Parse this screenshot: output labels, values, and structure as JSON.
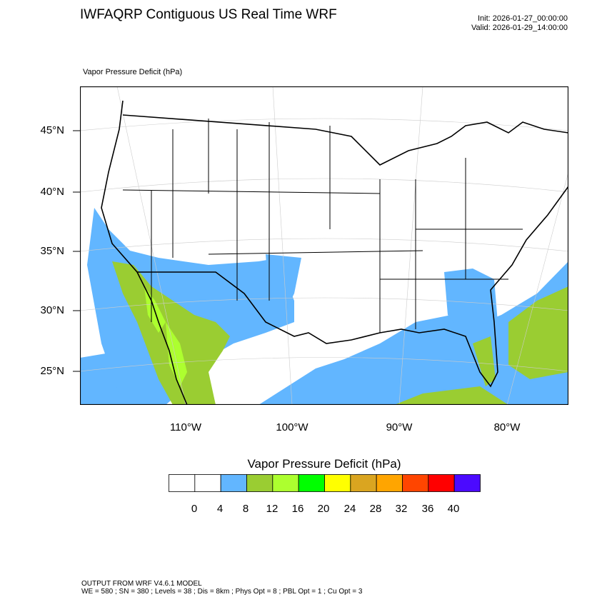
{
  "title": "IWFAQRP Contiguous US Real Time WRF",
  "init": "Init: 2026-01-27_00:00:00",
  "valid": "Valid: 2026-01-29_14:00:00",
  "subtitle": "Vapor Pressure Deficit   (hPa)",
  "lat_labels": [
    "45°N",
    "40°N",
    "35°N",
    "30°N",
    "25°N"
  ],
  "lon_labels": [
    "110°W",
    "100°W",
    "90°W",
    "80°W"
  ],
  "colorbar": {
    "title": "Vapor Pressure Deficit  (hPa)",
    "labels": [
      "0",
      "4",
      "8",
      "12",
      "16",
      "20",
      "24",
      "28",
      "32",
      "36",
      "40"
    ],
    "colors": [
      "#ffffff",
      "#ffffff",
      "#62b6ff",
      "#9acd32",
      "#adff2f",
      "#00ff00",
      "#ffff00",
      "#daa520",
      "#ffa500",
      "#ff4500",
      "#ff0000",
      "#4b0aff"
    ]
  },
  "footer": {
    "line1": "OUTPUT FROM WRF V4.6.1 MODEL",
    "line2": "WE = 580 ; SN = 380 ; Levels = 38 ; Dis = 8km ; Phys Opt = 8 ; PBL Opt = 1 ; Cu Opt = 3"
  }
}
